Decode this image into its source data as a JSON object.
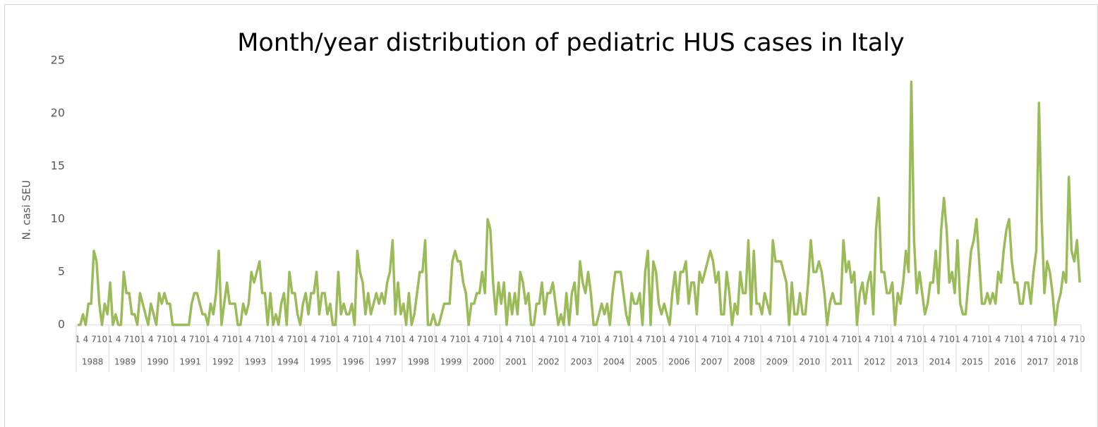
{
  "chart_data": {
    "type": "line",
    "title": "Month/year distribution of pediatric HUS cases in Italy",
    "y_label": "N. casi SEU",
    "color": "#9bbb59",
    "ylim": [
      0,
      25
    ],
    "yticks": [
      0,
      5,
      10,
      15,
      20,
      25
    ],
    "years": [
      "1988",
      "1989",
      "1990",
      "1991",
      "1992",
      "1993",
      "1994",
      "1995",
      "1996",
      "1997",
      "1998",
      "1999",
      "2000",
      "2001",
      "2002",
      "2003",
      "2004",
      "2005",
      "2006",
      "2007",
      "2008",
      "2009",
      "2010",
      "2011",
      "2012",
      "2013",
      "2014",
      "2015",
      "2016",
      "2017",
      "2018"
    ],
    "categories": [
      "1",
      null,
      null,
      "4",
      null,
      null,
      "7",
      null,
      null,
      "10",
      null,
      null,
      "1",
      null,
      null,
      "4",
      null,
      null,
      "7",
      null,
      null,
      "10",
      null,
      null,
      "1",
      null,
      null,
      "4",
      null,
      null,
      "7",
      null,
      null,
      "10",
      null,
      null,
      "1",
      null,
      null,
      "4",
      null,
      null,
      "7",
      null,
      null,
      "10",
      null,
      null,
      "1",
      null,
      null,
      "4",
      null,
      null,
      "7",
      null,
      null,
      "10",
      null,
      null,
      "1",
      null,
      null,
      "4",
      null,
      null,
      "7",
      null,
      null,
      "10",
      null,
      null,
      "1",
      null,
      null,
      "4",
      null,
      null,
      "7",
      null,
      null,
      "10",
      null,
      null,
      "1",
      null,
      null,
      "4",
      null,
      null,
      "7",
      null,
      null,
      "10",
      null,
      null,
      "1",
      null,
      null,
      "4",
      null,
      null,
      "7",
      null,
      null,
      "10",
      null,
      null,
      "1",
      null,
      null,
      "4",
      null,
      null,
      "7",
      null,
      null,
      "10",
      null,
      null,
      "1",
      null,
      null,
      "4",
      null,
      null,
      "7",
      null,
      null,
      "10",
      null,
      null,
      "1",
      null,
      null,
      "4",
      null,
      null,
      "7",
      null,
      null,
      "10",
      null,
      null,
      "1",
      null,
      null,
      "4",
      null,
      null,
      "7",
      null,
      null,
      "10",
      null,
      null,
      "1",
      null,
      null,
      "4",
      null,
      null,
      "7",
      null,
      null,
      "10",
      null,
      null,
      "1",
      null,
      null,
      "4",
      null,
      null,
      "7",
      null,
      null,
      "10",
      null,
      null,
      "1",
      null,
      null,
      "4",
      null,
      null,
      "7",
      null,
      null,
      "10",
      null,
      null,
      "1",
      null,
      null,
      "4",
      null,
      null,
      "7",
      null,
      null,
      "10",
      null,
      null,
      "1",
      null,
      null,
      "4",
      null,
      null,
      "7",
      null,
      null,
      "10",
      null,
      null,
      "1",
      null,
      null,
      "4",
      null,
      null,
      "7",
      null,
      null,
      "10",
      null,
      null,
      "1",
      null,
      null,
      "4",
      null,
      null,
      "7",
      null,
      null,
      "10",
      null,
      null,
      "1",
      null,
      null,
      "4",
      null,
      null,
      "7",
      null,
      null,
      "10",
      null,
      null,
      "1",
      null,
      null,
      "4",
      null,
      null,
      "7",
      null,
      null,
      "10",
      null,
      null,
      "1",
      null,
      null,
      "4",
      null,
      null,
      "7",
      null,
      null,
      "10",
      null,
      null,
      "1",
      null,
      null,
      "4",
      null,
      null,
      "7",
      null,
      null,
      "10",
      null,
      null,
      "1",
      null,
      null,
      "4",
      null,
      null,
      "7",
      null,
      null,
      "10",
      null,
      null,
      "1",
      null,
      null,
      "4",
      null,
      null,
      "7",
      null,
      null,
      "10",
      null,
      null,
      "1",
      null,
      null,
      "4",
      null,
      null,
      "7",
      null,
      null,
      "10",
      null,
      null,
      "1",
      null,
      null,
      "4",
      null,
      null,
      "7",
      null,
      null,
      "10",
      null,
      null,
      "1",
      null,
      null,
      "4",
      null,
      null,
      "7",
      null,
      null,
      "10",
      null,
      null,
      "1",
      null,
      null,
      "4",
      null,
      null,
      "7",
      null,
      null,
      "10",
      null,
      null,
      "1",
      null,
      null,
      "4",
      null,
      null,
      "7",
      null,
      null,
      "10"
    ],
    "values": [
      0,
      0,
      1,
      0,
      2,
      2,
      7,
      6,
      2,
      0,
      2,
      1,
      4,
      0,
      1,
      0,
      0,
      5,
      3,
      3,
      1,
      1,
      0,
      3,
      2,
      1,
      0,
      2,
      1,
      0,
      3,
      2,
      3,
      2,
      2,
      0,
      0,
      0,
      0,
      0,
      0,
      0,
      2,
      3,
      3,
      2,
      1,
      1,
      0,
      2,
      1,
      3,
      7,
      0,
      2,
      4,
      2,
      2,
      2,
      0,
      0,
      2,
      1,
      2,
      5,
      4,
      5,
      6,
      3,
      3,
      0,
      3,
      0,
      1,
      0,
      2,
      3,
      0,
      5,
      3,
      3,
      1,
      0,
      2,
      3,
      1,
      3,
      3,
      5,
      1,
      3,
      3,
      1,
      2,
      0,
      0,
      5,
      1,
      2,
      1,
      1,
      2,
      0,
      7,
      5,
      4,
      1,
      3,
      1,
      2,
      3,
      2,
      3,
      2,
      4,
      5,
      8,
      1,
      4,
      1,
      2,
      0,
      3,
      0,
      1,
      3,
      5,
      5,
      8,
      0,
      0,
      1,
      0,
      0,
      1,
      2,
      2,
      2,
      6,
      7,
      6,
      6,
      4,
      3,
      0,
      2,
      2,
      3,
      3,
      5,
      3,
      10,
      9,
      4,
      1,
      4,
      2,
      4,
      0,
      3,
      1,
      3,
      1,
      5,
      4,
      2,
      3,
      0,
      0,
      2,
      2,
      4,
      1,
      3,
      3,
      4,
      2,
      0,
      1,
      0,
      3,
      0,
      3,
      4,
      1,
      6,
      4,
      3,
      5,
      3,
      0,
      0,
      1,
      2,
      1,
      2,
      0,
      3,
      5,
      5,
      5,
      3,
      1,
      0,
      3,
      2,
      2,
      3,
      0,
      5,
      7,
      0,
      6,
      5,
      2,
      1,
      2,
      1,
      0,
      3,
      5,
      2,
      5,
      5,
      6,
      2,
      4,
      4,
      1,
      5,
      4,
      5,
      6,
      7,
      6,
      4,
      5,
      1,
      1,
      5,
      3,
      0,
      2,
      1,
      5,
      3,
      3,
      8,
      1,
      7,
      2,
      2,
      1,
      3,
      2,
      1,
      8,
      6,
      6,
      6,
      5,
      4,
      0,
      4,
      1,
      1,
      3,
      1,
      1,
      4,
      8,
      5,
      5,
      6,
      5,
      3,
      0,
      2,
      3,
      2,
      2,
      2,
      8,
      5,
      6,
      4,
      5,
      0,
      3,
      4,
      2,
      4,
      5,
      1,
      9,
      12,
      5,
      5,
      3,
      3,
      4,
      0,
      3,
      2,
      4,
      7,
      5,
      23,
      8,
      3,
      5,
      3,
      1,
      2,
      4,
      4,
      7,
      3,
      9,
      12,
      9,
      4,
      5,
      3,
      8,
      2,
      1,
      1,
      4,
      7,
      8,
      10,
      6,
      2,
      2,
      3,
      2,
      3,
      2,
      5,
      4,
      7,
      9,
      10,
      6,
      4,
      4,
      2,
      2,
      4,
      4,
      2,
      5,
      7,
      21,
      10,
      3,
      6,
      5,
      3,
      0,
      2,
      3,
      5,
      4,
      14,
      7,
      6,
      8,
      4
    ]
  }
}
